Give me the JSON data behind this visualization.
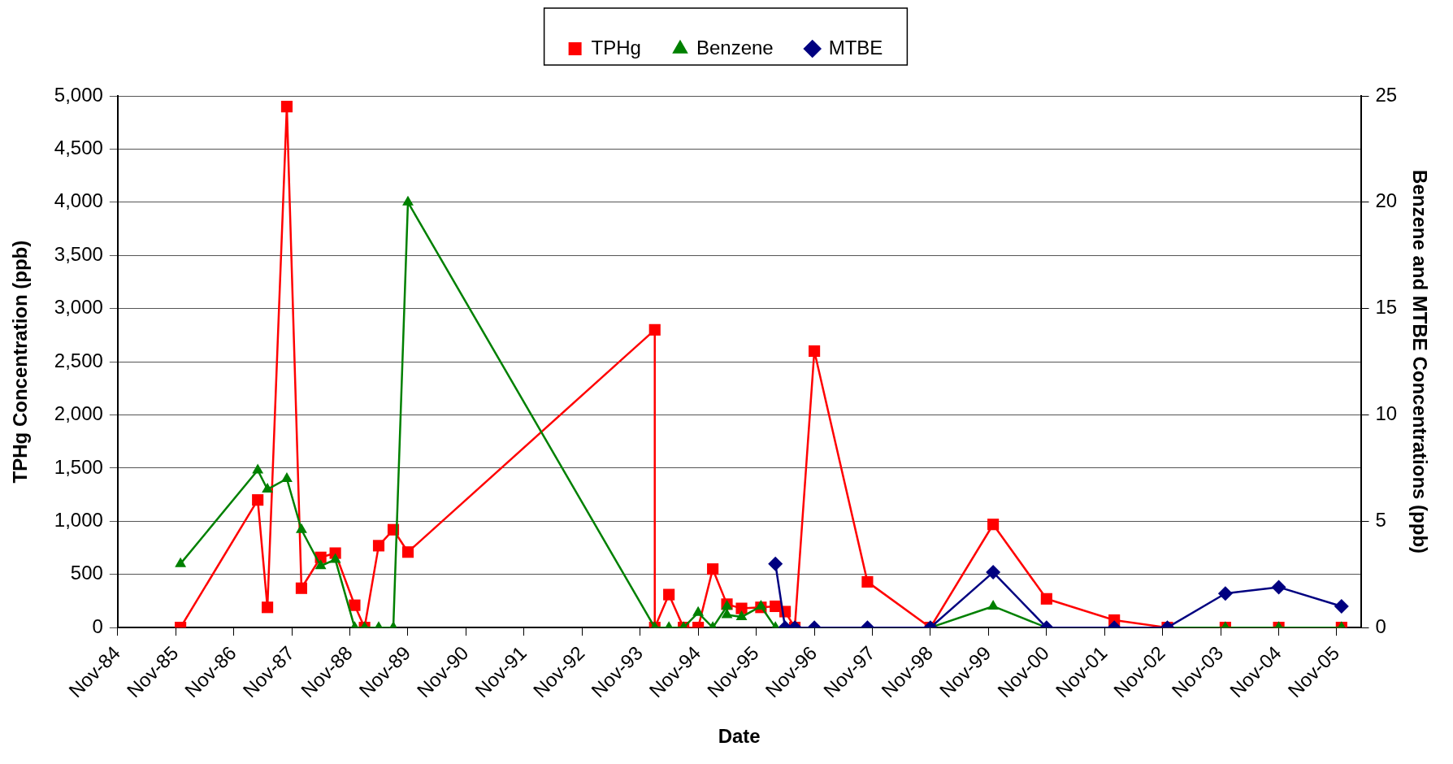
{
  "chart_data": {
    "type": "line",
    "xlabel": "Date",
    "ylabel": "TPHg Concentration (ppb)",
    "y2label": "Benzene and MTBE Concentrations (ppb)",
    "series": [
      {
        "name": "TPHg",
        "color": "#ff0000",
        "marker": "square",
        "axis": "y",
        "x": [
          "1985-12",
          "1987-04",
          "1987-06",
          "1987-10",
          "1988-01",
          "1988-05",
          "1988-08",
          "1988-12",
          "1989-02",
          "1989-05",
          "1989-08",
          "1989-11",
          "1994-02",
          "1994-02",
          "1994-05",
          "1994-08",
          "1994-11",
          "1995-02",
          "1995-05",
          "1995-08",
          "1995-12",
          "1996-03",
          "1996-05",
          "1996-07",
          "1996-11",
          "1997-10",
          "1998-11",
          "1999-12",
          "2000-11",
          "2002-01",
          "2002-12",
          "2003-12",
          "2004-11",
          "2005-12"
        ],
        "values": [
          0,
          1200,
          190,
          4900,
          370,
          660,
          700,
          210,
          0,
          770,
          920,
          710,
          2800,
          0,
          310,
          0,
          0,
          550,
          220,
          180,
          190,
          200,
          150,
          0,
          2600,
          430,
          0,
          970,
          270,
          70,
          0,
          0,
          0,
          0
        ]
      },
      {
        "name": "Benzene",
        "color": "#008000",
        "marker": "triangle",
        "axis": "y2",
        "x": [
          "1985-12",
          "1987-04",
          "1987-06",
          "1987-10",
          "1988-01",
          "1988-05",
          "1988-08",
          "1988-12",
          "1989-02",
          "1989-05",
          "1989-08",
          "1989-11",
          "1994-02",
          "1994-05",
          "1994-08",
          "1994-11",
          "1995-02",
          "1995-05",
          "1995-05",
          "1995-08",
          "1995-12",
          "1996-03",
          "1996-05",
          "1996-07",
          "1996-11",
          "1997-10",
          "1998-11",
          "1999-12",
          "2000-11",
          "2002-01",
          "2002-12",
          "2003-12",
          "2004-11",
          "2005-12"
        ],
        "values": [
          3,
          7.4,
          6.5,
          7,
          4.6,
          2.9,
          3.2,
          0,
          0,
          0,
          0,
          20,
          0,
          0,
          0,
          0.7,
          0,
          1.0,
          0.6,
          0.5,
          1.0,
          0,
          0,
          0,
          0,
          0,
          0,
          1.0,
          0,
          0,
          0,
          0,
          0,
          0
        ]
      },
      {
        "name": "MTBE",
        "color": "#000080",
        "marker": "diamond",
        "axis": "y2",
        "x": [
          "1996-03",
          "1996-05",
          "1996-07",
          "1996-11",
          "1997-10",
          "1998-11",
          "1999-12",
          "2000-11",
          "2002-01",
          "2002-12",
          "2003-12",
          "2004-11",
          "2005-12"
        ],
        "values": [
          3,
          0,
          0,
          0,
          0,
          0,
          2.6,
          0,
          0,
          0,
          1.6,
          1.9,
          1.0
        ]
      }
    ],
    "xlim": [
      "1984-11",
      "2006-04"
    ],
    "xticks": [
      {
        "value": "1984-11",
        "label": "Nov-84"
      },
      {
        "value": "1985-11",
        "label": "Nov-85"
      },
      {
        "value": "1986-11",
        "label": "Nov-86"
      },
      {
        "value": "1987-11",
        "label": "Nov-87"
      },
      {
        "value": "1988-11",
        "label": "Nov-88"
      },
      {
        "value": "1989-11",
        "label": "Nov-89"
      },
      {
        "value": "1990-11",
        "label": "Nov-90"
      },
      {
        "value": "1991-11",
        "label": "Nov-91"
      },
      {
        "value": "1992-11",
        "label": "Nov-92"
      },
      {
        "value": "1993-11",
        "label": "Nov-93"
      },
      {
        "value": "1994-11",
        "label": "Nov-94"
      },
      {
        "value": "1995-11",
        "label": "Nov-95"
      },
      {
        "value": "1996-11",
        "label": "Nov-96"
      },
      {
        "value": "1997-11",
        "label": "Nov-97"
      },
      {
        "value": "1998-11",
        "label": "Nov-98"
      },
      {
        "value": "1999-11",
        "label": "Nov-99"
      },
      {
        "value": "2000-11",
        "label": "Nov-00"
      },
      {
        "value": "2001-11",
        "label": "Nov-01"
      },
      {
        "value": "2002-11",
        "label": "Nov-02"
      },
      {
        "value": "2003-11",
        "label": "Nov-03"
      },
      {
        "value": "2004-11",
        "label": "Nov-04"
      },
      {
        "value": "2005-11",
        "label": "Nov-05"
      }
    ],
    "ylim": [
      0,
      5000
    ],
    "yticks": [
      0,
      {
        "value": 500,
        "label": "500"
      },
      {
        "value": 1000,
        "label": "1,000"
      },
      {
        "value": 1500,
        "label": "1,500"
      },
      {
        "value": 2000,
        "label": "2,000"
      },
      {
        "value": 2500,
        "label": "2,500"
      },
      {
        "value": 3000,
        "label": "3,000"
      },
      {
        "value": 3500,
        "label": "3,500"
      },
      {
        "value": 4000,
        "label": "4,000"
      },
      {
        "value": 4500,
        "label": "4,500"
      },
      {
        "value": 5000,
        "label": "5,000"
      }
    ],
    "y2lim": [
      0,
      25
    ],
    "y2ticks": [
      0,
      5,
      10,
      15,
      20,
      25
    ],
    "grid": "y",
    "legend": "top",
    "line_style": "solid"
  }
}
